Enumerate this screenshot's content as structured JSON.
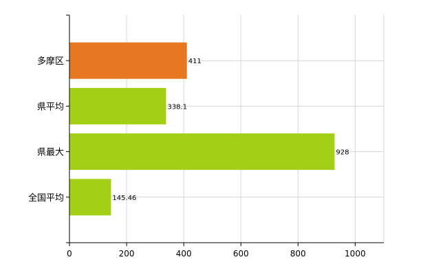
{
  "chart_data": {
    "type": "bar",
    "orientation": "horizontal",
    "categories": [
      "多摩区",
      "県平均",
      "県最大",
      "全国平均"
    ],
    "values": [
      411,
      338.1,
      928,
      145.46
    ],
    "value_labels": [
      "411",
      "338.1",
      "928",
      "145.46"
    ],
    "colors": [
      "#e87722",
      "#a4cf17",
      "#a4cf17",
      "#a4cf17"
    ],
    "xticks": [
      "0",
      "200",
      "400",
      "600",
      "800",
      "1000"
    ],
    "xlim": [
      0,
      1100
    ],
    "grid": true,
    "legend": "none",
    "title": "",
    "xlabel": "",
    "ylabel": ""
  }
}
